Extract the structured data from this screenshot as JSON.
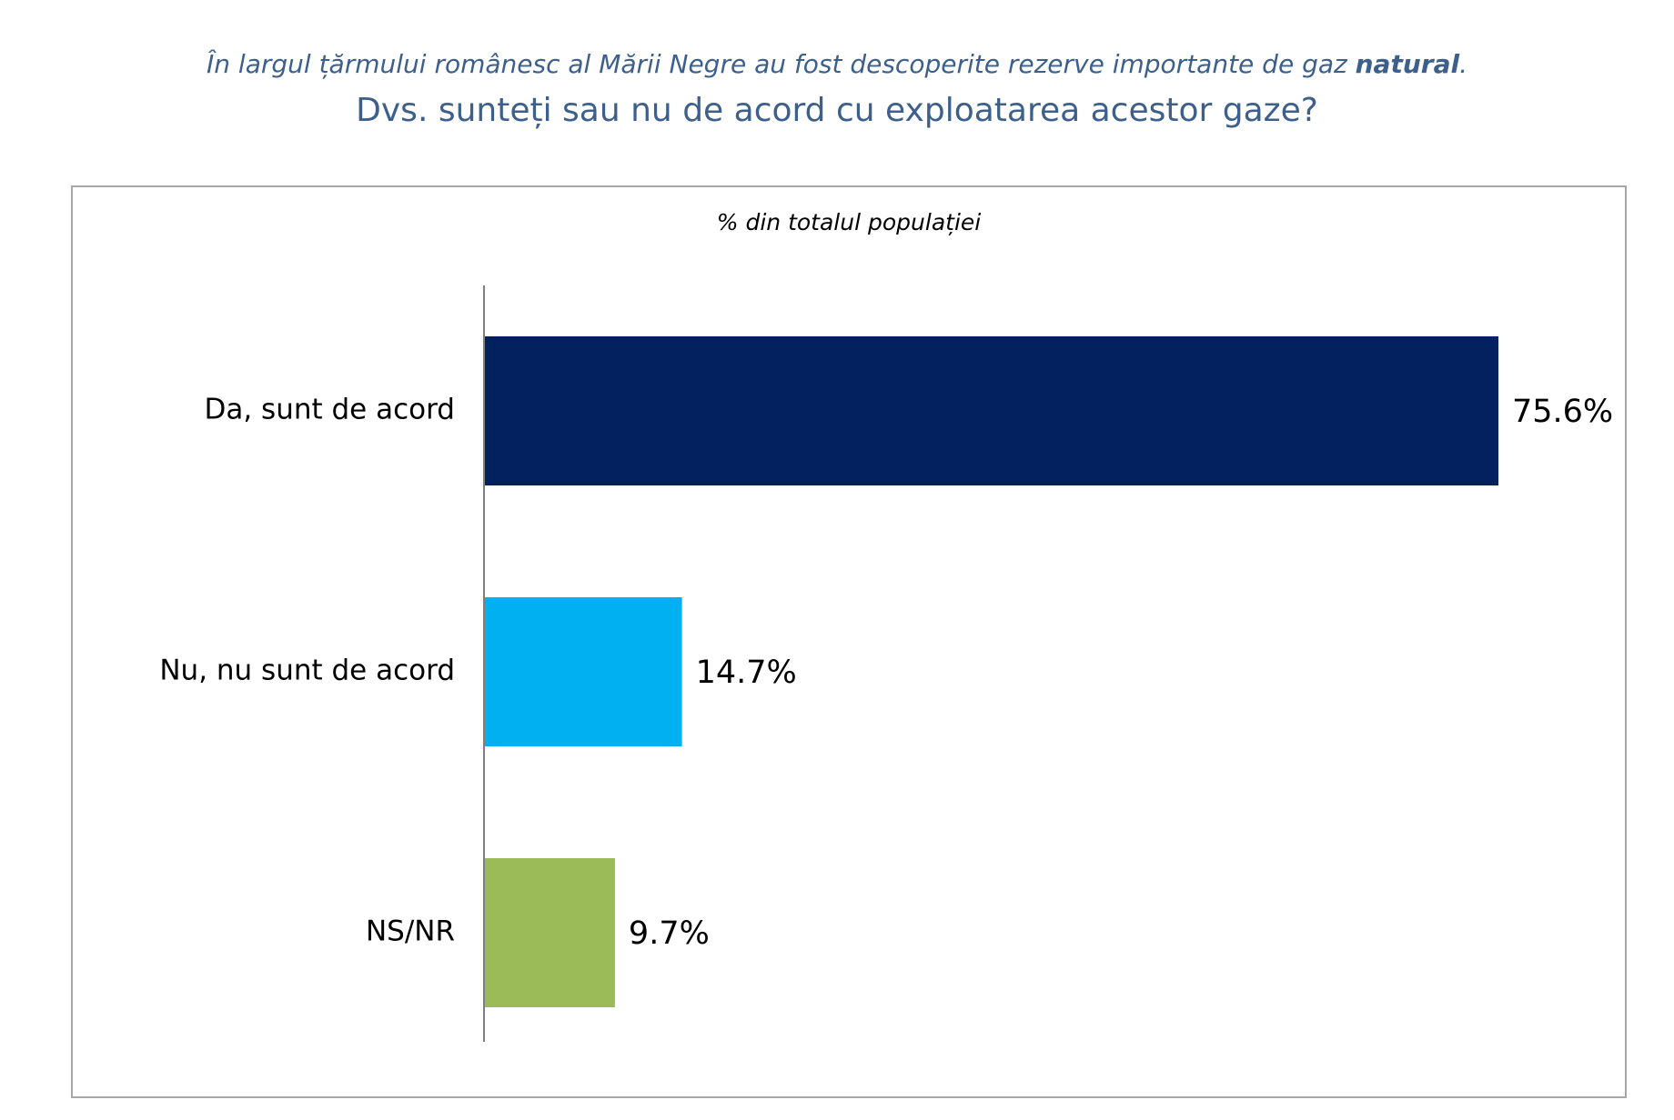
{
  "header": {
    "subtitle_main": "În largul țărmului românesc al Mării Negre au fost descoperite rezerve importante de gaz ",
    "subtitle_bold": "natural",
    "subtitle_end": ".",
    "title": "Dvs. sunteți sau nu de acord cu exploatarea acestor gaze?"
  },
  "chart_data": {
    "type": "bar",
    "orientation": "horizontal",
    "title": "% din totalul populației",
    "categories": [
      "Da, sunt de acord",
      "Nu, nu sunt de acord",
      "NS/NR"
    ],
    "values": [
      75.6,
      14.7,
      9.7
    ],
    "value_labels": [
      "75.6%",
      "14.7%",
      "9.7%"
    ],
    "colors": [
      "#03215f",
      "#00b0f0",
      "#9bbb59"
    ],
    "xlim": [
      0,
      80
    ],
    "grid": false,
    "legend": "none"
  }
}
